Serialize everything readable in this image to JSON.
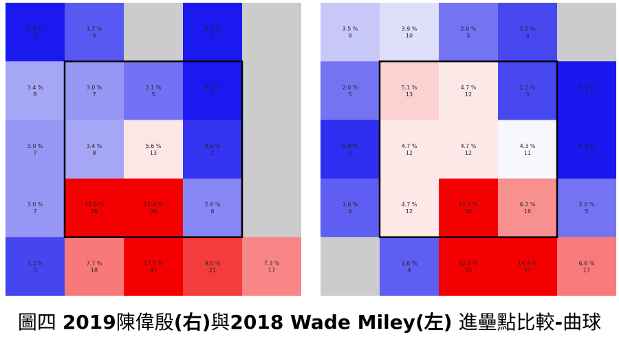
{
  "chart_data": [
    {
      "type": "heatmap",
      "rows": 5,
      "cols": 5,
      "strike_zone": {
        "rows": [
          1,
          3
        ],
        "cols": [
          1,
          3
        ]
      },
      "cells": [
        [
          {
            "pct": "0.4 %",
            "n": 1,
            "color": "#1a1af0"
          },
          {
            "pct": "1.7 %",
            "n": 4,
            "color": "#5858f2"
          },
          null,
          {
            "pct": "0.4 %",
            "n": 1,
            "color": "#1a1af0"
          },
          null
        ],
        [
          {
            "pct": "3.4 %",
            "n": 8,
            "color": "#a6a6f7"
          },
          {
            "pct": "3.0 %",
            "n": 7,
            "color": "#9696f5"
          },
          {
            "pct": "2.1 %",
            "n": 5,
            "color": "#7272f4"
          },
          {
            "pct": "0.4 %",
            "n": 1,
            "color": "#1a1af0"
          },
          null
        ],
        [
          {
            "pct": "3.0 %",
            "n": 7,
            "color": "#9696f5"
          },
          {
            "pct": "3.4 %",
            "n": 8,
            "color": "#a6a6f7"
          },
          {
            "pct": "5.6 %",
            "n": 13,
            "color": "#fde6e6"
          },
          {
            "pct": "0.9 %",
            "n": 2,
            "color": "#3434f1"
          },
          null
        ],
        [
          {
            "pct": "3.0 %",
            "n": 7,
            "color": "#9696f5"
          },
          {
            "pct": "12.0 %",
            "n": 28,
            "color": "#f40000"
          },
          {
            "pct": "15.4 %",
            "n": 36,
            "color": "#f40000"
          },
          {
            "pct": "2.6 %",
            "n": 6,
            "color": "#8686f5"
          },
          null
        ],
        [
          {
            "pct": "1.3 %",
            "n": 3,
            "color": "#4646f1"
          },
          {
            "pct": "7.7 %",
            "n": 18,
            "color": "#f87878"
          },
          {
            "pct": "17.5 %",
            "n": 41,
            "color": "#f40000"
          },
          {
            "pct": "9.0 %",
            "n": 21,
            "color": "#f43c3c"
          },
          {
            "pct": "7.3 %",
            "n": 17,
            "color": "#f88686"
          }
        ]
      ]
    },
    {
      "type": "heatmap",
      "rows": 5,
      "cols": 5,
      "strike_zone": {
        "rows": [
          1,
          3
        ],
        "cols": [
          1,
          3
        ]
      },
      "cells": [
        [
          {
            "pct": "3.5 %",
            "n": 9,
            "color": "#c8c8f8"
          },
          {
            "pct": "3.9 %",
            "n": 10,
            "color": "#dedefa"
          },
          {
            "pct": "2.0 %",
            "n": 5,
            "color": "#7474f3"
          },
          {
            "pct": "1.2 %",
            "n": 3,
            "color": "#4848f1"
          },
          null
        ],
        [
          {
            "pct": "2.0 %",
            "n": 5,
            "color": "#7474f3"
          },
          {
            "pct": "5.1 %",
            "n": 13,
            "color": "#fad2d2"
          },
          {
            "pct": "4.7 %",
            "n": 12,
            "color": "#fde8e8"
          },
          {
            "pct": "1.2 %",
            "n": 3,
            "color": "#4848f1"
          },
          {
            "pct": "0.4 %",
            "n": 1,
            "color": "#1818ef"
          }
        ],
        [
          {
            "pct": "0.8 %",
            "n": 2,
            "color": "#2e2ef0"
          },
          {
            "pct": "4.7 %",
            "n": 12,
            "color": "#fde8e8"
          },
          {
            "pct": "4.7 %",
            "n": 12,
            "color": "#fde8e8"
          },
          {
            "pct": "4.3 %",
            "n": 11,
            "color": "#f7f7fd"
          },
          {
            "pct": "0.4 %",
            "n": 1,
            "color": "#1818ef"
          }
        ],
        [
          {
            "pct": "1.6 %",
            "n": 4,
            "color": "#5e5ef2"
          },
          {
            "pct": "4.7 %",
            "n": 12,
            "color": "#fde8e8"
          },
          {
            "pct": "11.7 %",
            "n": 30,
            "color": "#f40000"
          },
          {
            "pct": "6.2 %",
            "n": 16,
            "color": "#f89090"
          },
          {
            "pct": "2.0 %",
            "n": 5,
            "color": "#7474f3"
          }
        ],
        [
          null,
          {
            "pct": "1.6 %",
            "n": 4,
            "color": "#5e5ef2"
          },
          {
            "pct": "12.8 %",
            "n": 33,
            "color": "#f40000"
          },
          {
            "pct": "14.4 %",
            "n": 37,
            "color": "#f40000"
          },
          {
            "pct": "6.6 %",
            "n": 17,
            "color": "#f87a7a"
          }
        ]
      ]
    }
  ],
  "colors": {
    "empty_cell": "#cccccc",
    "zone_border": "#000000"
  },
  "caption": {
    "prefix": "圖四 ",
    "bold_year1": "2019",
    "pitcher1": "陳偉殷",
    "side1": "(右)",
    "middle": "與",
    "bold_year2": "2018 Wade Miley",
    "side2": "(左)",
    "suffix": " 進壘點比較",
    "bold_dash": "-",
    "pitch": "曲球"
  }
}
